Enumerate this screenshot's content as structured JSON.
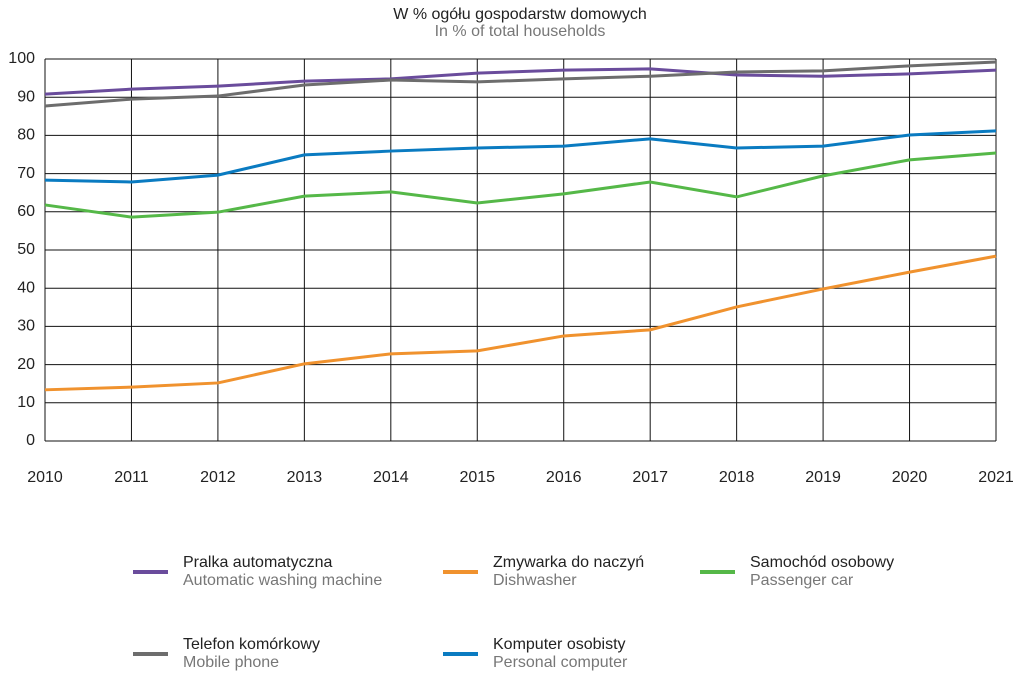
{
  "chart_data": {
    "type": "line",
    "title": "W % ogółu gospodarstw domowych",
    "subtitle": "In % of total households",
    "x": [
      2010,
      2011,
      2012,
      2013,
      2014,
      2015,
      2016,
      2017,
      2018,
      2019,
      2020,
      2021
    ],
    "xlim": [
      2010,
      2021
    ],
    "ylim": [
      0,
      100
    ],
    "yticks": [
      0,
      10,
      20,
      30,
      40,
      50,
      60,
      70,
      80,
      90,
      100
    ],
    "grid": true,
    "series": [
      {
        "name": "Pralka automatyczna",
        "name_en": "Automatic washing machine",
        "color": "#6a4c9c",
        "values": [
          90.8,
          92.1,
          92.9,
          94.2,
          94.8,
          96.3,
          97.1,
          97.4,
          95.8,
          95.5,
          96.1,
          97.1
        ]
      },
      {
        "name": "Zmywarka do naczyń",
        "name_en": "Dishwasher",
        "color": "#f0922e",
        "values": [
          13.4,
          14.1,
          15.2,
          20.2,
          22.8,
          23.6,
          27.5,
          29.1,
          35.1,
          39.8,
          44.2,
          48.4
        ]
      },
      {
        "name": "Samochód osobowy",
        "name_en": "Passenger car",
        "color": "#55b848",
        "values": [
          61.8,
          58.6,
          59.9,
          64.1,
          65.2,
          62.3,
          64.7,
          67.8,
          63.9,
          69.4,
          73.6,
          75.4
        ]
      },
      {
        "name": "Telefon komórkowy",
        "name_en": "Mobile phone",
        "color": "#6d6d6d",
        "values": [
          87.7,
          89.5,
          90.3,
          93.2,
          94.5,
          94.0,
          94.8,
          95.5,
          96.6,
          96.9,
          98.2,
          99.2
        ]
      },
      {
        "name": "Komputer osobisty",
        "name_en": "Personal computer",
        "color": "#0a7bc1",
        "values": [
          68.3,
          67.8,
          69.6,
          74.9,
          75.9,
          76.7,
          77.2,
          79.1,
          76.7,
          77.2,
          80.1,
          81.2
        ]
      }
    ]
  }
}
